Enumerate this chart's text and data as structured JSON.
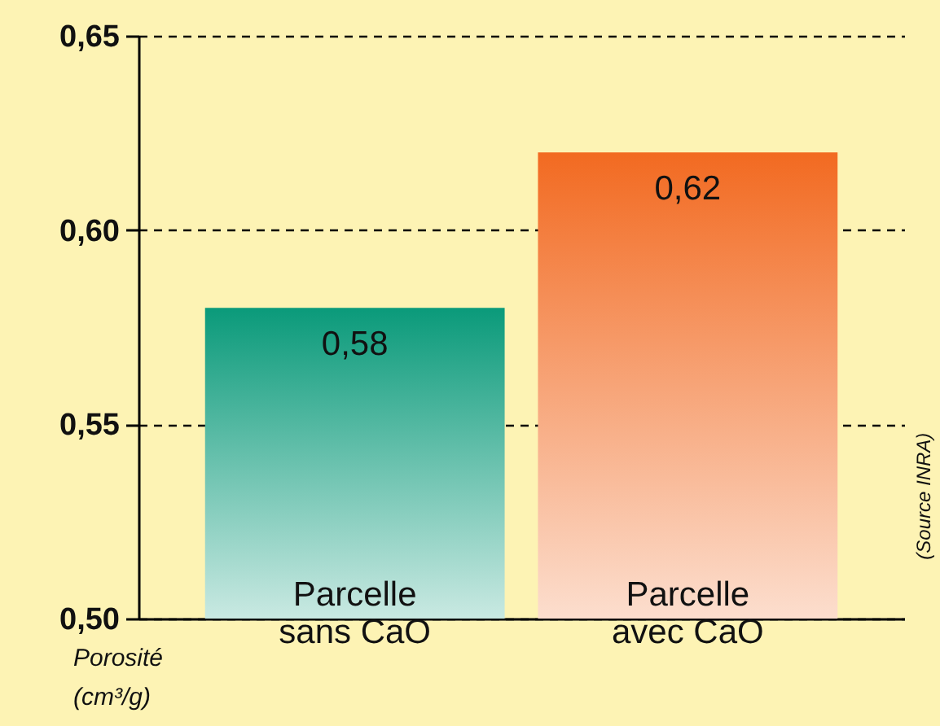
{
  "chart_data": {
    "type": "bar",
    "categories": [
      "Parcelle sans CaO",
      "Parcelle avec CaO"
    ],
    "values": [
      0.58,
      0.62
    ],
    "colors": [
      "#0a9a7a",
      "#f26a21"
    ],
    "value_labels": [
      "0,58",
      "0,62"
    ],
    "ylabel": "Porosité (cm³/g)",
    "ylim": [
      0.5,
      0.65
    ],
    "yticks": [
      {
        "value": 0.5,
        "label": "0,50"
      },
      {
        "value": 0.55,
        "label": "0,55"
      },
      {
        "value": 0.6,
        "label": "0,60"
      },
      {
        "value": 0.65,
        "label": "0,65"
      }
    ],
    "grid": "y",
    "annotations": [
      "(Source INRA)"
    ]
  }
}
